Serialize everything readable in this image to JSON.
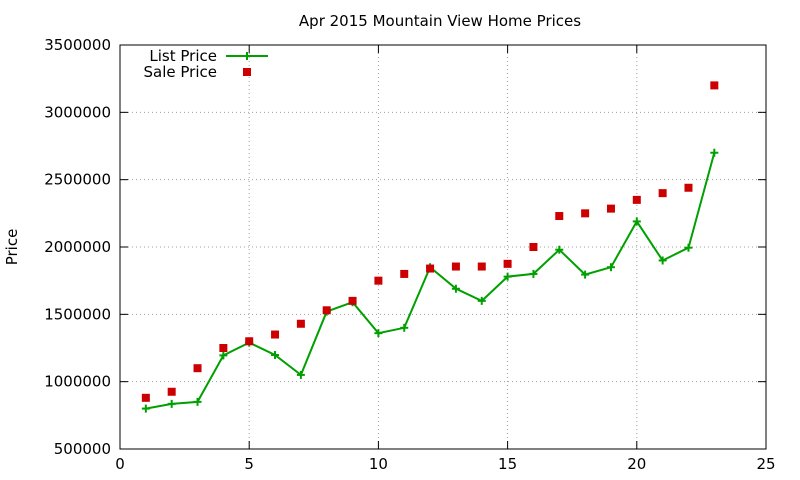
{
  "chart_data": {
    "type": "line",
    "title": "Apr 2015 Mountain View Home Prices",
    "xlabel": "",
    "ylabel": "Price",
    "xlim": [
      0,
      25
    ],
    "ylim": [
      500000,
      3500000
    ],
    "xticks": [
      0,
      5,
      10,
      15,
      20,
      25
    ],
    "yticks": [
      500000,
      1000000,
      1500000,
      2000000,
      2500000,
      3000000,
      3500000
    ],
    "grid": true,
    "legend_position": "top-left",
    "series": [
      {
        "name": "List Price",
        "style": "line-with-plus-markers",
        "color": "#00a000",
        "x": [
          1,
          2,
          3,
          4,
          5,
          6,
          7,
          8,
          9,
          10,
          11,
          12,
          13,
          14,
          15,
          16,
          17,
          18,
          19,
          20,
          21,
          22,
          23
        ],
        "values": [
          800000,
          835000,
          850000,
          1195000,
          1290000,
          1198000,
          1050000,
          1520000,
          1590000,
          1360000,
          1400000,
          1850000,
          1690000,
          1600000,
          1780000,
          1800000,
          1980000,
          1795000,
          1850000,
          2190000,
          1900000,
          1995000,
          2700000
        ]
      },
      {
        "name": "Sale Price",
        "style": "square-markers",
        "color": "#cc0000",
        "x": [
          1,
          2,
          3,
          4,
          5,
          6,
          7,
          8,
          9,
          10,
          11,
          12,
          13,
          14,
          15,
          16,
          17,
          18,
          19,
          20,
          21,
          22,
          23
        ],
        "values": [
          880000,
          925000,
          1100000,
          1250000,
          1300000,
          1350000,
          1430000,
          1530000,
          1600000,
          1750000,
          1800000,
          1840000,
          1855000,
          1855000,
          1875000,
          2000000,
          2230000,
          2250000,
          2285000,
          2350000,
          2400000,
          2440000,
          3200000
        ]
      }
    ]
  }
}
